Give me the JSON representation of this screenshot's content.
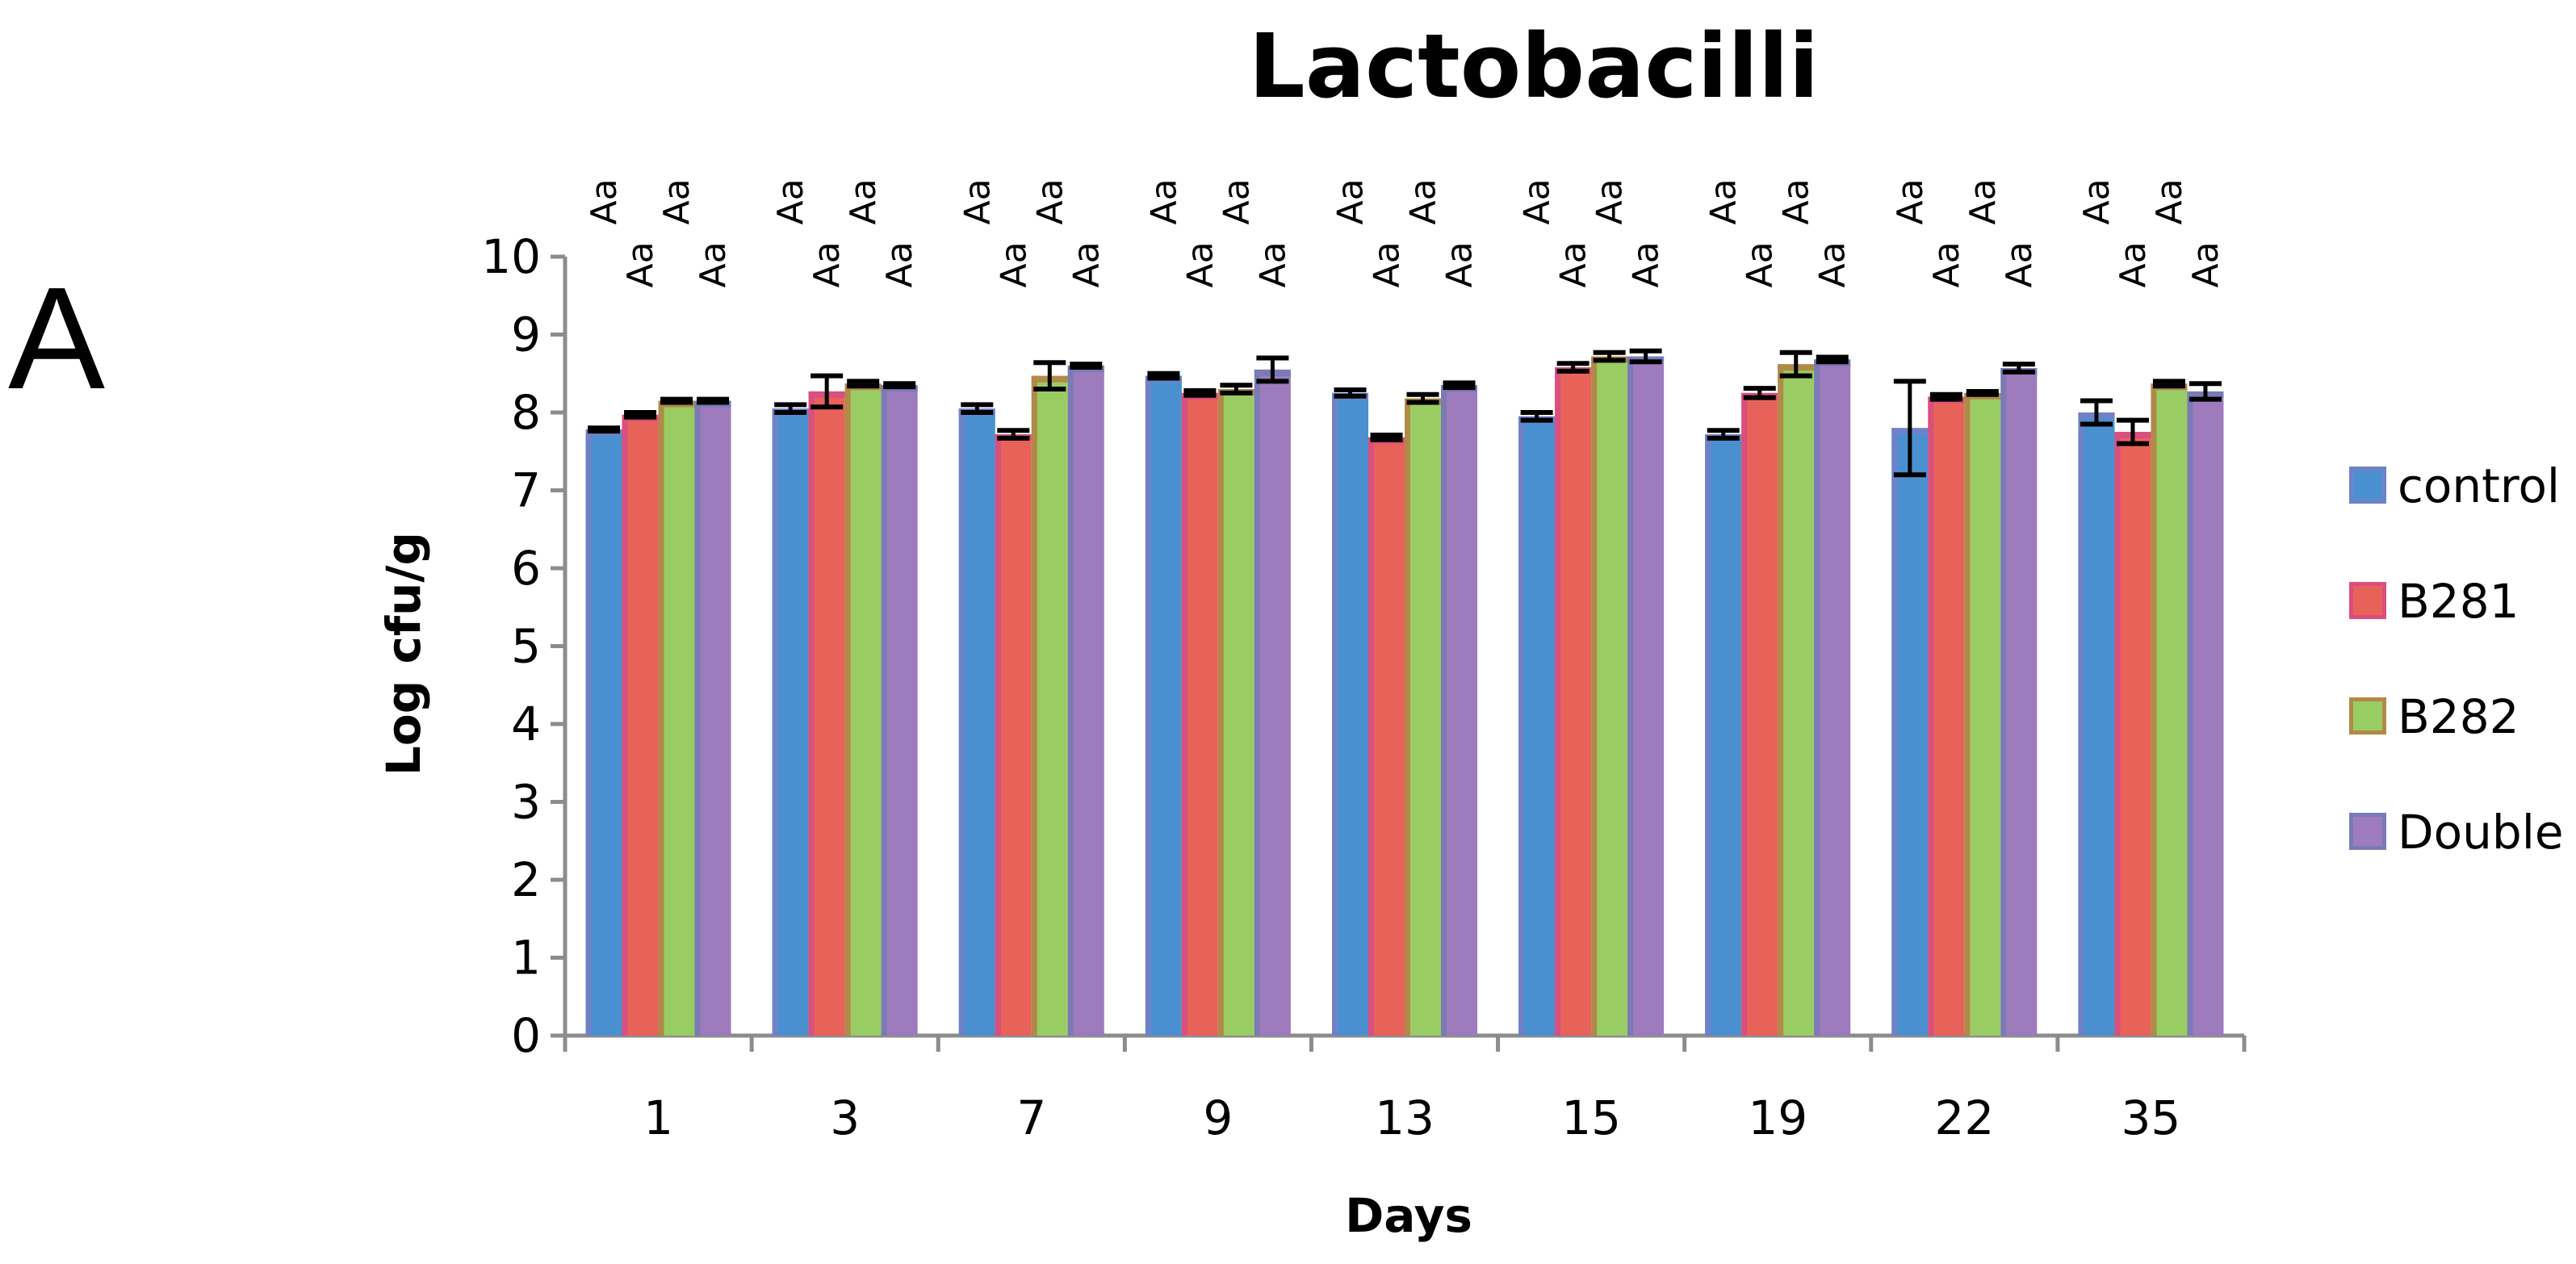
{
  "panel_label": "A",
  "chart_data": {
    "type": "bar",
    "title": "Lactobacilli",
    "xlabel": "Days",
    "ylabel": "Log cfu/g",
    "ylim": [
      0,
      10
    ],
    "yticks": [
      "0",
      "1",
      "2",
      "3",
      "4",
      "5",
      "6",
      "7",
      "8",
      "9",
      "10"
    ],
    "categories": [
      "1",
      "3",
      "7",
      "9",
      "13",
      "15",
      "19",
      "22",
      "35"
    ],
    "series": [
      {
        "name": "control",
        "color": "#4a90d0",
        "edge": "#6f82c8",
        "values": [
          7.78,
          8.05,
          8.05,
          8.47,
          8.25,
          7.95,
          7.72,
          7.8,
          8.0
        ],
        "errors": [
          0.02,
          0.05,
          0.05,
          0.03,
          0.04,
          0.05,
          0.05,
          0.6,
          0.15
        ]
      },
      {
        "name": "B281",
        "color": "#e8625a",
        "edge": "#d94f7d",
        "values": [
          7.97,
          8.27,
          7.72,
          8.25,
          7.68,
          8.58,
          8.25,
          8.2,
          7.75
        ],
        "errors": [
          0.03,
          0.2,
          0.05,
          0.03,
          0.03,
          0.05,
          0.06,
          0.03,
          0.15
        ]
      },
      {
        "name": "B282",
        "color": "#9acc64",
        "edge": "#b08a48",
        "values": [
          8.15,
          8.37,
          8.47,
          8.3,
          8.18,
          8.72,
          8.62,
          8.25,
          8.37
        ],
        "errors": [
          0.02,
          0.03,
          0.17,
          0.05,
          0.05,
          0.05,
          0.15,
          0.02,
          0.03
        ]
      },
      {
        "name": "Double",
        "color": "#9d7bbd",
        "edge": "#7a7ab5",
        "values": [
          8.15,
          8.35,
          8.6,
          8.55,
          8.35,
          8.72,
          8.68,
          8.57,
          8.27
        ],
        "errors": [
          0.02,
          0.02,
          0.02,
          0.15,
          0.03,
          0.07,
          0.03,
          0.05,
          0.1
        ]
      }
    ],
    "letters": [
      [
        "Aa",
        "Aa",
        "Aa",
        "Aa"
      ],
      [
        "Aa",
        "Aa",
        "Aa",
        "Aa"
      ],
      [
        "Aa",
        "Aa",
        "Aa",
        "Aa"
      ],
      [
        "Aa",
        "Aa",
        "Aa",
        "Aa"
      ],
      [
        "Aa",
        "Aa",
        "Aa",
        "Aa"
      ],
      [
        "Aa",
        "Aa",
        "Aa",
        "Aa"
      ],
      [
        "Aa",
        "Aa",
        "Aa",
        "Aa"
      ],
      [
        "Aa",
        "Aa",
        "Aa",
        "Aa"
      ],
      [
        "Aa",
        "Aa",
        "Aa",
        "Aa"
      ]
    ],
    "grid": false,
    "legend_position": "right"
  }
}
